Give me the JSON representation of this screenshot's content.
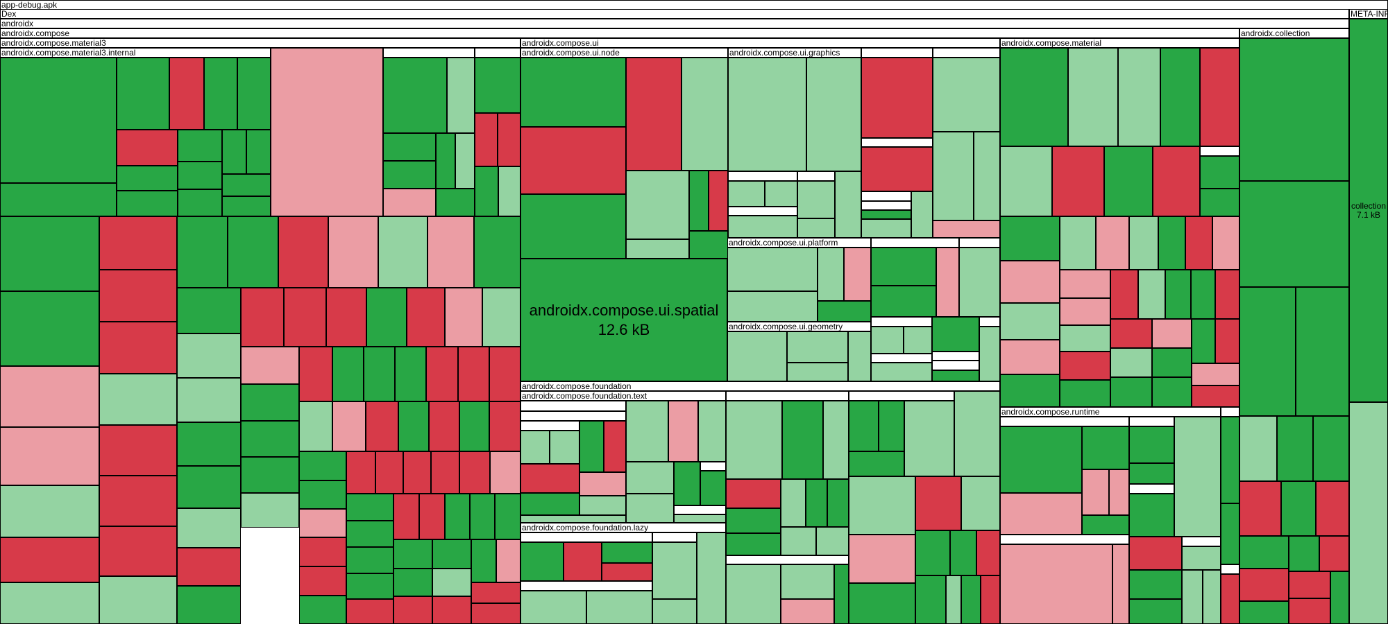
{
  "headers": {
    "apk": "app-debug.apk",
    "dex": "Dex",
    "androidx": "androidx",
    "compose": "androidx.compose",
    "material3": "androidx.compose.material3",
    "material3_internal": "androidx.compose.material3.internal",
    "ui": "androidx.compose.ui",
    "ui_node": "androidx.compose.ui.node",
    "ui_graphics": "androidx.compose.ui.graphics",
    "ui_platform": "androidx.compose.ui.platform",
    "ui_geometry": "androidx.compose.ui.geometry",
    "material": "androidx.compose.material",
    "collection": "androidx.collection",
    "meta_inf": "META-INF",
    "foundation": "androidx.compose.foundation",
    "foundation_text": "androidx.compose.foundation.text",
    "foundation_lazy": "androidx.compose.foundation.lazy",
    "runtime": "androidx.compose.runtime"
  },
  "tiles": {
    "spatial": {
      "name": "androidx.compose.ui.spatial",
      "size": "12.6 kB"
    },
    "collection": {
      "name": "collection",
      "size": "7.1 kB"
    }
  },
  "colors": {
    "dark_green": "#28a745",
    "light_green": "#94d3a2",
    "dark_red": "#d73a49",
    "light_red": "#eb9da4"
  }
}
